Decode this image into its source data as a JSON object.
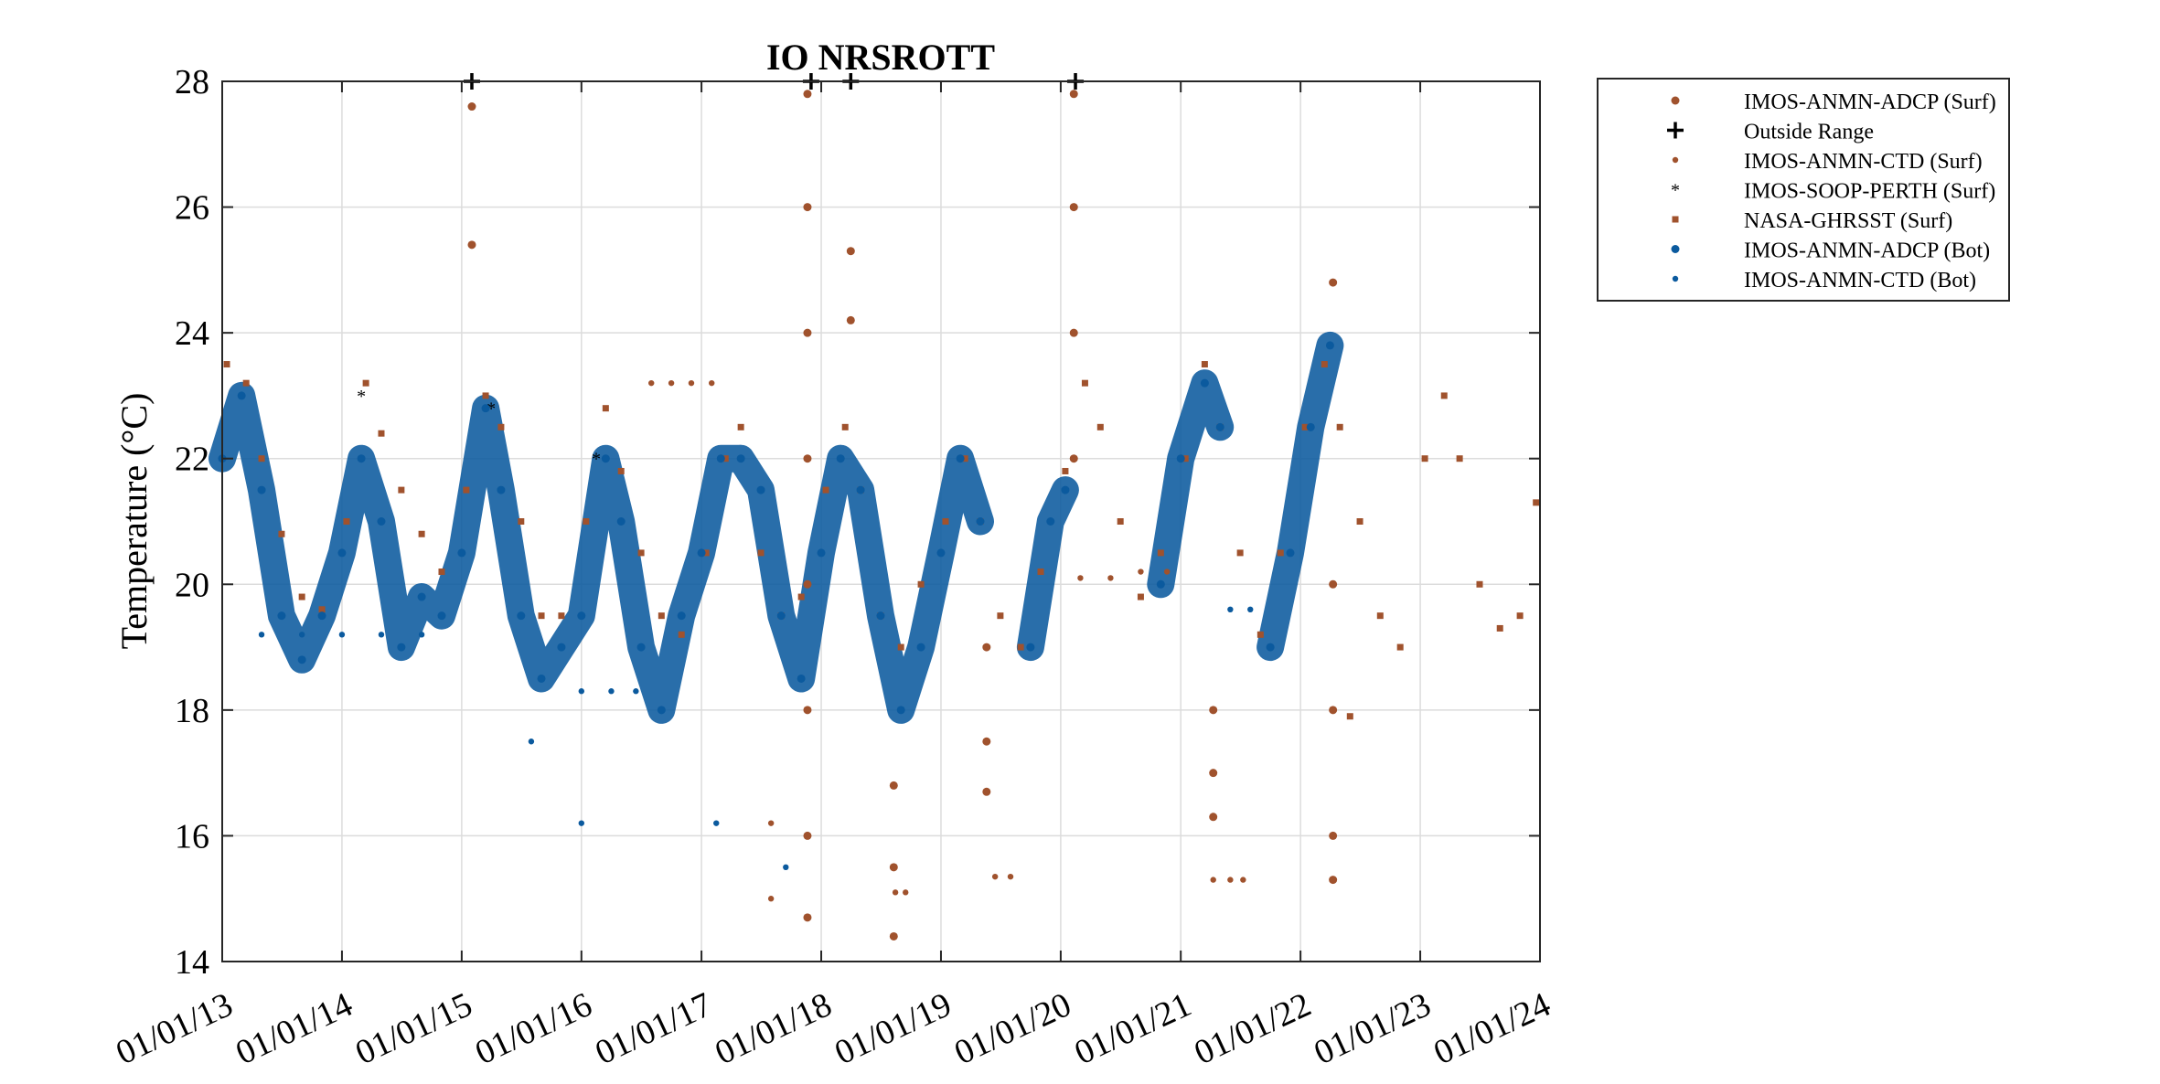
{
  "chart_data": {
    "type": "scatter",
    "title": "IO NRSROTT",
    "ylabel": "Temperature (°C)",
    "xlabel": "",
    "x_axis_kind": "date",
    "xlim": [
      "2013-01-01",
      "2024-01-01"
    ],
    "ylim": [
      14,
      28
    ],
    "x_tick_labels": [
      "01/01/13",
      "01/01/14",
      "01/01/15",
      "01/01/16",
      "01/01/17",
      "01/01/18",
      "01/01/19",
      "01/01/20",
      "01/01/21",
      "01/01/22",
      "01/01/23",
      "01/01/24"
    ],
    "y_tick_labels": [
      "14",
      "16",
      "18",
      "20",
      "22",
      "24",
      "26",
      "28"
    ],
    "grid": true,
    "legend_position": "outside-right-top",
    "colors": {
      "surface": "#A0522D",
      "bottom": "#0B5A9E"
    },
    "legend": [
      {
        "label": "IMOS-ANMN-ADCP (Surf)",
        "marker": "circle",
        "color": "#A0522D"
      },
      {
        "label": "Outside Range",
        "marker": "plus",
        "color": "#000000"
      },
      {
        "label": "IMOS-ANMN-CTD (Surf)",
        "marker": "dot",
        "color": "#A0522D"
      },
      {
        "label": "IMOS-SOOP-PERTH (Surf)",
        "marker": "star",
        "color": "#A0522D"
      },
      {
        "label": "NASA-GHRSST (Surf)",
        "marker": "square",
        "color": "#A0522D"
      },
      {
        "label": "IMOS-ANMN-ADCP (Bot)",
        "marker": "circle",
        "color": "#0B5A9E"
      },
      {
        "label": "IMOS-ANMN-CTD (Bot)",
        "marker": "dot",
        "color": "#0B5A9E"
      }
    ],
    "series": [
      {
        "name": "IMOS-ANMN-ADCP (Surf)",
        "color": "#A0522D",
        "points": [
          [
            "2015-02-01",
            27.6
          ],
          [
            "2015-02-01",
            25.4
          ],
          [
            "2017-11-20",
            27.8
          ],
          [
            "2017-11-20",
            26.0
          ],
          [
            "2017-11-20",
            24.0
          ],
          [
            "2017-11-20",
            22.0
          ],
          [
            "2017-11-20",
            20.0
          ],
          [
            "2017-11-20",
            18.0
          ],
          [
            "2017-11-20",
            16.0
          ],
          [
            "2017-11-20",
            14.7
          ],
          [
            "2018-04-01",
            25.3
          ],
          [
            "2018-04-01",
            24.2
          ],
          [
            "2018-08-10",
            16.8
          ],
          [
            "2018-08-10",
            15.5
          ],
          [
            "2018-08-10",
            14.4
          ],
          [
            "2019-05-20",
            19.0
          ],
          [
            "2019-05-20",
            17.5
          ],
          [
            "2019-05-20",
            16.7
          ],
          [
            "2020-02-10",
            27.8
          ],
          [
            "2020-02-10",
            26.0
          ],
          [
            "2020-02-10",
            24.0
          ],
          [
            "2020-02-10",
            22.0
          ],
          [
            "2021-04-10",
            18.0
          ],
          [
            "2021-04-10",
            17.0
          ],
          [
            "2021-04-10",
            16.3
          ],
          [
            "2022-04-10",
            24.8
          ],
          [
            "2022-04-10",
            20.0
          ],
          [
            "2022-04-10",
            18.0
          ],
          [
            "2022-04-10",
            16.0
          ],
          [
            "2022-04-10",
            15.3
          ]
        ]
      },
      {
        "name": "IMOS-ANMN-CTD (Surf)",
        "color": "#A0522D",
        "points": [
          [
            "2016-08-01",
            23.2
          ],
          [
            "2016-10-01",
            23.2
          ],
          [
            "2016-12-01",
            23.2
          ],
          [
            "2017-02-01",
            23.2
          ],
          [
            "2018-08-15",
            15.1
          ],
          [
            "2018-09-15",
            15.1
          ],
          [
            "2019-06-15",
            15.35
          ],
          [
            "2019-08-01",
            15.35
          ],
          [
            "2020-03-01",
            20.1
          ],
          [
            "2020-06-01",
            20.1
          ],
          [
            "2020-09-01",
            20.2
          ],
          [
            "2020-11-20",
            20.2
          ],
          [
            "2021-04-10",
            15.3
          ],
          [
            "2021-06-01",
            15.3
          ],
          [
            "2021-07-10",
            15.3
          ],
          [
            "2017-08-01",
            15.0
          ],
          [
            "2017-08-01",
            16.2
          ]
        ]
      },
      {
        "name": "IMOS-SOOP-PERTH (Surf)",
        "color": "#A0522D",
        "points": [
          [
            "2014-03-01",
            23.0
          ],
          [
            "2015-04-01",
            22.8
          ],
          [
            "2016-02-15",
            22.0
          ]
        ]
      },
      {
        "name": "NASA-GHRSST (Surf)",
        "color": "#A0522D",
        "points": [
          [
            "2013-01-15",
            23.5
          ],
          [
            "2013-03-15",
            23.2
          ],
          [
            "2013-05-01",
            22.0
          ],
          [
            "2013-07-01",
            20.8
          ],
          [
            "2013-09-01",
            19.8
          ],
          [
            "2013-11-01",
            19.6
          ],
          [
            "2014-01-15",
            21.0
          ],
          [
            "2014-03-15",
            23.2
          ],
          [
            "2014-05-01",
            22.4
          ],
          [
            "2014-07-01",
            21.5
          ],
          [
            "2014-09-01",
            20.8
          ],
          [
            "2014-11-01",
            20.2
          ],
          [
            "2015-01-15",
            21.5
          ],
          [
            "2015-03-15",
            23.0
          ],
          [
            "2015-05-01",
            22.5
          ],
          [
            "2015-07-01",
            21.0
          ],
          [
            "2015-09-01",
            19.5
          ],
          [
            "2015-11-01",
            19.5
          ],
          [
            "2016-01-15",
            21.0
          ],
          [
            "2016-03-15",
            22.8
          ],
          [
            "2016-05-01",
            21.8
          ],
          [
            "2016-07-01",
            20.5
          ],
          [
            "2016-09-01",
            19.5
          ],
          [
            "2016-11-01",
            19.2
          ],
          [
            "2017-01-15",
            20.5
          ],
          [
            "2017-03-15",
            22.0
          ],
          [
            "2017-05-01",
            22.5
          ],
          [
            "2017-07-01",
            20.5
          ],
          [
            "2017-09-01",
            19.5
          ],
          [
            "2017-11-01",
            19.8
          ],
          [
            "2018-01-15",
            21.5
          ],
          [
            "2018-03-15",
            22.5
          ],
          [
            "2018-05-01",
            21.5
          ],
          [
            "2018-07-01",
            19.5
          ],
          [
            "2018-09-01",
            19.0
          ],
          [
            "2018-11-01",
            20.0
          ],
          [
            "2019-01-15",
            21.0
          ],
          [
            "2019-03-15",
            22.0
          ],
          [
            "2019-05-01",
            21.0
          ],
          [
            "2019-07-01",
            19.5
          ],
          [
            "2019-09-01",
            19.0
          ],
          [
            "2019-11-01",
            20.2
          ],
          [
            "2020-01-15",
            21.8
          ],
          [
            "2020-03-15",
            23.2
          ],
          [
            "2020-05-01",
            22.5
          ],
          [
            "2020-07-01",
            21.0
          ],
          [
            "2020-09-01",
            19.8
          ],
          [
            "2020-11-01",
            20.5
          ],
          [
            "2021-01-15",
            22.0
          ],
          [
            "2021-03-15",
            23.5
          ],
          [
            "2021-05-01",
            22.5
          ],
          [
            "2021-07-01",
            20.5
          ],
          [
            "2021-09-01",
            19.2
          ],
          [
            "2021-11-01",
            20.5
          ],
          [
            "2022-01-15",
            22.5
          ],
          [
            "2022-03-15",
            23.5
          ],
          [
            "2022-05-01",
            22.5
          ],
          [
            "2022-07-01",
            21.0
          ],
          [
            "2022-09-01",
            19.5
          ],
          [
            "2022-11-01",
            19.0
          ],
          [
            "2022-06-01",
            17.9
          ],
          [
            "2023-01-15",
            22.0
          ],
          [
            "2023-03-15",
            23.0
          ],
          [
            "2023-05-01",
            22.0
          ],
          [
            "2023-07-01",
            20.0
          ],
          [
            "2023-09-01",
            19.3
          ],
          [
            "2023-11-01",
            19.5
          ],
          [
            "2023-12-20",
            21.3
          ]
        ]
      },
      {
        "name": "IMOS-ANMN-ADCP (Bot)",
        "color": "#0B5A9E",
        "points": [
          [
            "2013-01-01",
            22.0
          ],
          [
            "2013-03-01",
            23.0
          ],
          [
            "2013-05-01",
            21.5
          ],
          [
            "2013-07-01",
            19.5
          ],
          [
            "2013-09-01",
            18.8
          ],
          [
            "2013-11-01",
            19.5
          ],
          [
            "2014-01-01",
            20.5
          ],
          [
            "2014-03-01",
            22.0
          ],
          [
            "2014-05-01",
            21.0
          ],
          [
            "2014-07-01",
            19.0
          ],
          [
            "2014-09-01",
            19.8
          ],
          [
            "2014-11-01",
            19.5
          ],
          [
            "2015-01-01",
            20.5
          ],
          [
            "2015-03-15",
            22.8
          ],
          [
            "2015-05-01",
            21.5
          ],
          [
            "2015-07-01",
            19.5
          ],
          [
            "2015-09-01",
            18.5
          ],
          [
            "2015-11-01",
            19.0
          ],
          [
            "2016-01-01",
            19.5
          ],
          [
            "2016-03-15",
            22.0
          ],
          [
            "2016-05-01",
            21.0
          ],
          [
            "2016-07-01",
            19.0
          ],
          [
            "2016-09-01",
            18.0
          ],
          [
            "2016-11-01",
            19.5
          ],
          [
            "2017-01-01",
            20.5
          ],
          [
            "2017-03-01",
            22.0
          ],
          [
            "2017-05-01",
            22.0
          ],
          [
            "2017-07-01",
            21.5
          ],
          [
            "2017-09-01",
            19.5
          ],
          [
            "2017-11-01",
            18.5
          ],
          [
            "2018-01-01",
            20.5
          ],
          [
            "2018-03-01",
            22.0
          ],
          [
            "2018-05-01",
            21.5
          ],
          [
            "2018-07-01",
            19.5
          ],
          [
            "2018-09-01",
            18.0
          ],
          [
            "2018-11-01",
            19.0
          ],
          [
            "2019-01-01",
            20.5
          ],
          [
            "2019-03-01",
            22.0
          ],
          [
            "2019-05-01",
            21.0
          ],
          [
            "2019-10-01",
            19.0
          ],
          [
            "2019-12-01",
            21.0
          ],
          [
            "2020-01-15",
            21.5
          ],
          [
            "2020-11-01",
            20.0
          ],
          [
            "2021-01-01",
            22.0
          ],
          [
            "2021-03-15",
            23.2
          ],
          [
            "2021-05-01",
            22.5
          ],
          [
            "2021-10-01",
            19.0
          ],
          [
            "2021-12-01",
            20.5
          ],
          [
            "2022-02-01",
            22.5
          ],
          [
            "2022-04-01",
            23.8
          ]
        ]
      },
      {
        "name": "IMOS-ANMN-CTD (Bot)",
        "color": "#0B5A9E",
        "points": [
          [
            "2013-05-01",
            19.2
          ],
          [
            "2013-09-01",
            19.2
          ],
          [
            "2014-01-01",
            19.2
          ],
          [
            "2014-05-01",
            19.2
          ],
          [
            "2014-09-01",
            19.2
          ],
          [
            "2016-01-01",
            18.3
          ],
          [
            "2016-04-01",
            18.3
          ],
          [
            "2016-06-15",
            18.3
          ],
          [
            "2021-06-01",
            19.6
          ],
          [
            "2021-08-01",
            19.6
          ],
          [
            "2015-08-01",
            17.5
          ],
          [
            "2016-01-01",
            16.2
          ],
          [
            "2017-02-15",
            16.2
          ],
          [
            "2017-09-15",
            15.5
          ]
        ]
      },
      {
        "name": "Outside Range",
        "color": "#000000",
        "points": [
          [
            "2015-02-01",
            28
          ],
          [
            "2017-12-01",
            28
          ],
          [
            "2018-04-01",
            28
          ],
          [
            "2020-02-15",
            28
          ]
        ]
      }
    ]
  }
}
